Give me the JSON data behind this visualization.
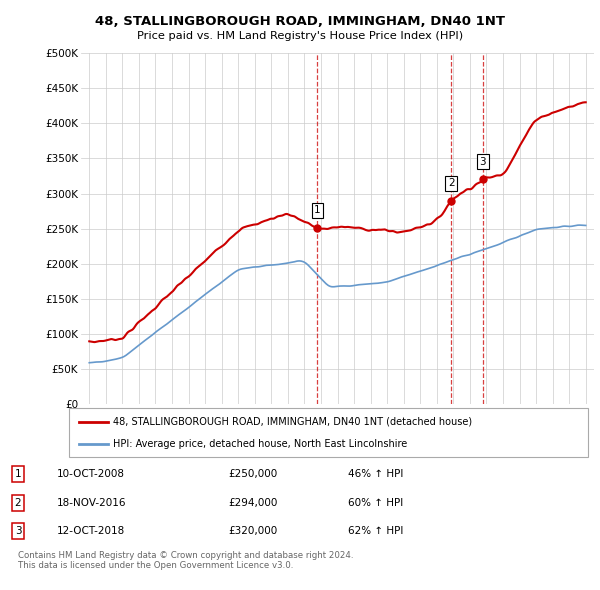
{
  "title": "48, STALLINGBOROUGH ROAD, IMMINGHAM, DN40 1NT",
  "subtitle": "Price paid vs. HM Land Registry's House Price Index (HPI)",
  "red_label": "48, STALLINGBOROUGH ROAD, IMMINGHAM, DN40 1NT (detached house)",
  "blue_label": "HPI: Average price, detached house, North East Lincolnshire",
  "footer": "Contains HM Land Registry data © Crown copyright and database right 2024.\nThis data is licensed under the Open Government Licence v3.0.",
  "sales": [
    {
      "num": 1,
      "date": "10-OCT-2008",
      "price": 250000,
      "pct": "46%",
      "year": 2008.79
    },
    {
      "num": 2,
      "date": "18-NOV-2016",
      "price": 294000,
      "pct": "60%",
      "year": 2016.88
    },
    {
      "num": 3,
      "date": "12-OCT-2018",
      "price": 320000,
      "pct": "62%",
      "year": 2018.79
    }
  ],
  "ylim": [
    0,
    500000
  ],
  "yticks": [
    0,
    50000,
    100000,
    150000,
    200000,
    250000,
    300000,
    350000,
    400000,
    450000,
    500000
  ],
  "ytick_labels": [
    "£0",
    "£50K",
    "£100K",
    "£150K",
    "£200K",
    "£250K",
    "£300K",
    "£350K",
    "£400K",
    "£450K",
    "£500K"
  ],
  "xlim_min": 1994.5,
  "xlim_max": 2025.5,
  "red_color": "#cc0000",
  "blue_color": "#6699cc",
  "grid_color": "#cccccc",
  "legend_edge_color": "#aaaaaa",
  "footer_color": "#666666"
}
